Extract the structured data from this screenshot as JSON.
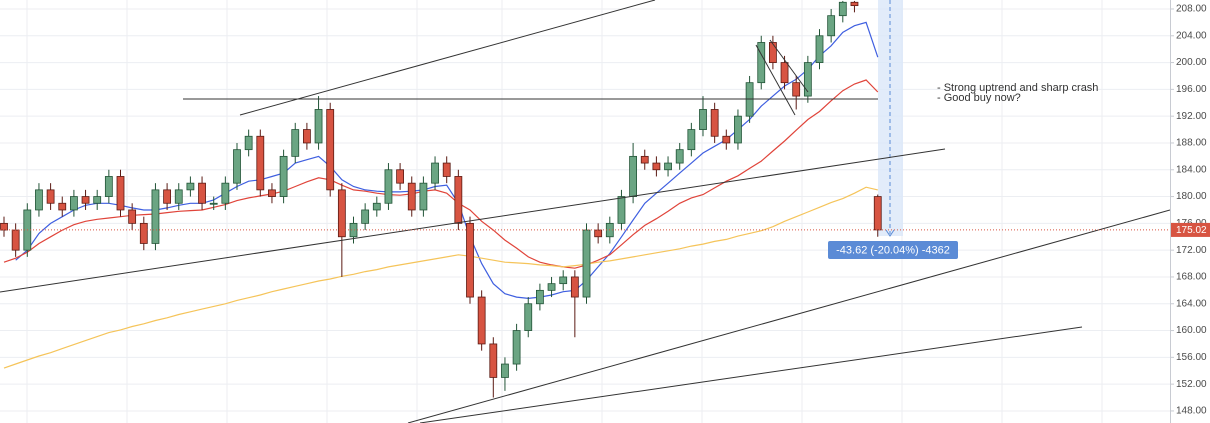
{
  "chart_data": {
    "type": "candlestick",
    "open": [
      176,
      175,
      172,
      178,
      181,
      179,
      178,
      180,
      179,
      180,
      183,
      178,
      176,
      173,
      181,
      179,
      181,
      182,
      179,
      179,
      182,
      187,
      189,
      181,
      180,
      186,
      190,
      188,
      193,
      181,
      174,
      176,
      178,
      179,
      184,
      182,
      178,
      182,
      185,
      183,
      176,
      165,
      158,
      153,
      155,
      160,
      164,
      166,
      167,
      168,
      165,
      175,
      174,
      176,
      180,
      186,
      185,
      184,
      185,
      187,
      190,
      193,
      189,
      188,
      192,
      197,
      203,
      200,
      197,
      195,
      200,
      204,
      207,
      209,
      null,
      180
    ],
    "high": [
      177,
      176,
      179,
      182,
      182,
      180,
      181,
      181,
      181,
      184,
      184,
      179,
      177,
      182,
      182,
      182,
      183,
      183,
      180,
      183,
      188,
      190,
      190,
      182,
      187,
      191,
      191,
      195,
      194,
      182,
      177,
      179,
      180,
      185,
      185,
      183,
      183,
      186,
      186,
      184,
      177,
      166,
      159,
      156,
      161,
      165,
      167,
      168,
      169,
      169,
      176,
      176,
      177,
      181,
      188,
      187,
      186,
      186,
      188,
      191,
      195,
      194,
      190,
      193,
      198,
      204,
      204,
      201,
      198,
      201,
      205,
      208,
      209.2,
      209.2,
      null,
      180.3
    ],
    "low": [
      174,
      171,
      171,
      177,
      178,
      177,
      177,
      178,
      178,
      179,
      177,
      175,
      172,
      172,
      178,
      178,
      180,
      178,
      178,
      178,
      181,
      186,
      180,
      179,
      179,
      185,
      187,
      187,
      180,
      168,
      173,
      175,
      177,
      178,
      181,
      177,
      177,
      181,
      182,
      175,
      164,
      157,
      150,
      151,
      154,
      159,
      163,
      165,
      166,
      159,
      164,
      173,
      173,
      175,
      179,
      184,
      183,
      183,
      184,
      186,
      189,
      188,
      187,
      187,
      191,
      196,
      199,
      196,
      193,
      194,
      199,
      203,
      206,
      207.5,
      null,
      174
    ],
    "close": [
      175,
      172,
      178,
      181,
      179,
      178,
      180,
      179,
      180,
      183,
      178,
      176,
      173,
      181,
      179,
      181,
      182,
      179,
      179,
      182,
      187,
      189,
      181,
      180,
      186,
      190,
      188,
      193,
      181,
      174,
      176,
      178,
      179,
      184,
      182,
      178,
      182,
      185,
      183,
      176,
      165,
      158,
      153,
      155,
      160,
      164,
      166,
      167,
      168,
      165,
      175,
      174,
      176,
      180,
      186,
      185,
      184,
      185,
      187,
      190,
      193,
      189,
      188,
      192,
      197,
      203,
      200,
      197,
      195,
      200,
      204,
      207,
      209,
      208.5,
      null,
      175.02
    ],
    "up_color": "#6ba583",
    "down_color": "#d75442",
    "series": [
      {
        "color": "#3f5fe0",
        "values": [
          null,
          170.5,
          172,
          174.5,
          176,
          177,
          178,
          178.7,
          179,
          179,
          178.7,
          178.3,
          178,
          178,
          178.3,
          178.7,
          179,
          179,
          179.5,
          180.5,
          181.5,
          182.3,
          182.5,
          183,
          183.5,
          185,
          185.5,
          186,
          184.5,
          182.5,
          181.5,
          181,
          180.8,
          180.7,
          180.7,
          180.8,
          181,
          181.5,
          181.7,
          179,
          174,
          170,
          167,
          165.5,
          165,
          164.8,
          165,
          165.3,
          165.8,
          166,
          167.5,
          169.5,
          171.5,
          174,
          176.5,
          179,
          180.5,
          182,
          183.5,
          185,
          186.5,
          187.5,
          188.5,
          190,
          191.5,
          193.5,
          195,
          196.5,
          197.5,
          199,
          201,
          202.5,
          204.5,
          205.5,
          206,
          200.8
        ]
      },
      {
        "color": "#e0443a",
        "values": [
          170.2,
          170.8,
          171.7,
          173,
          174,
          175,
          175.8,
          176.3,
          176.6,
          176.8,
          177,
          177.2,
          177.3,
          177.4,
          177.6,
          177.8,
          177.9,
          178,
          178.4,
          178.8,
          179.4,
          179.8,
          180.1,
          180.4,
          180.8,
          181.5,
          182.2,
          182.8,
          182.5,
          181.7,
          181,
          180.8,
          180.5,
          180.3,
          180.2,
          180.4,
          180.8,
          181,
          180.5,
          179,
          178,
          176.3,
          175,
          173.5,
          172.3,
          171,
          170.2,
          169.8,
          169.5,
          169.3,
          169.8,
          170.5,
          171.3,
          172.8,
          174.3,
          175.7,
          176.7,
          177.8,
          179,
          179.8,
          180.3,
          181.3,
          182.3,
          183.1,
          184.2,
          185.3,
          186.8,
          188.3,
          189.9,
          191.5,
          192.7,
          194.3,
          195.8,
          196.8,
          197.4,
          195.6
        ]
      },
      {
        "color": "#f5c45a",
        "values": [
          154.4,
          155.0,
          155.6,
          156.2,
          156.7,
          157.3,
          157.9,
          158.5,
          159.1,
          159.7,
          160.1,
          160.6,
          161.0,
          161.5,
          161.9,
          162.4,
          162.8,
          163.2,
          163.6,
          164.0,
          164.5,
          164.9,
          165.3,
          165.8,
          166.2,
          166.6,
          167.0,
          167.4,
          167.7,
          168.1,
          168.4,
          168.8,
          169.1,
          169.5,
          169.8,
          170.1,
          170.4,
          170.7,
          171.0,
          171.3,
          171.1,
          170.8,
          170.5,
          170.2,
          170.1,
          170.0,
          169.8,
          169.7,
          169.5,
          169.7,
          169.9,
          170.2,
          170.4,
          170.7,
          171.0,
          171.3,
          171.6,
          171.9,
          172.2,
          172.6,
          172.9,
          173.3,
          173.6,
          174.1,
          174.5,
          174.9,
          175.5,
          176.3,
          177.0,
          177.7,
          178.4,
          179.1,
          179.7,
          180.5,
          181.4,
          181.0
        ]
      }
    ],
    "ylim": [
      146.2,
      209.34
    ],
    "yticks": [
      {
        "value": 148,
        "label": "148.00"
      },
      {
        "value": 152,
        "label": "152.00"
      },
      {
        "value": 156,
        "label": "156.00"
      },
      {
        "value": 160,
        "label": "160.00"
      },
      {
        "value": 164,
        "label": "164.00"
      },
      {
        "value": 168,
        "label": "168.00"
      },
      {
        "value": 172,
        "label": "172.00"
      },
      {
        "value": 176,
        "label": "176.00"
      },
      {
        "value": 180,
        "label": "180.00"
      },
      {
        "value": 184,
        "label": "184.00"
      },
      {
        "value": 188,
        "label": "188.00"
      },
      {
        "value": 192,
        "label": "192.00"
      },
      {
        "value": 196,
        "label": "196.00"
      },
      {
        "value": 200,
        "label": "200.00"
      },
      {
        "value": 204,
        "label": "204.00"
      },
      {
        "value": 208,
        "label": "208.00"
      }
    ],
    "grid": true,
    "last_price": 175.02,
    "measure_label": "-43.62 (-20.04%) -4362",
    "annotations": [
      "- Strong uptrend and sharp crash",
      "- Good buy now?"
    ]
  }
}
